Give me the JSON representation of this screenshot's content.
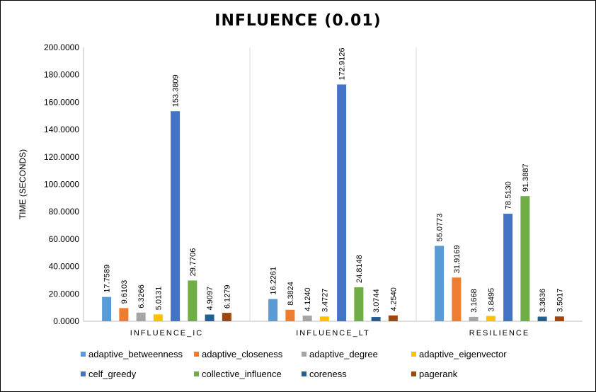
{
  "chart_data": {
    "type": "bar",
    "title": "INFLUENCE (0.01)",
    "ylabel": "TIME (SECONDS)",
    "xlabel": "",
    "ylim": [
      0,
      200
    ],
    "yticks": [
      "0.0000",
      "20.0000",
      "40.0000",
      "60.0000",
      "80.0000",
      "100.0000",
      "120.0000",
      "140.0000",
      "160.0000",
      "180.0000",
      "200.0000"
    ],
    "categories": [
      "INFLUENCE_IC",
      "INFLUENCE_LT",
      "RESILIENCE"
    ],
    "series": [
      {
        "name": "adaptive_betweenness",
        "color": "#5B9BD5",
        "values": [
          17.7589,
          16.2261,
          55.0773
        ],
        "labels": [
          "17.7589",
          "16.2261",
          "55.0773"
        ]
      },
      {
        "name": "adaptive_closeness",
        "color": "#ED7D31",
        "values": [
          9.6103,
          8.3824,
          31.9169
        ],
        "labels": [
          "9.6103",
          "8.3824",
          "31.9169"
        ]
      },
      {
        "name": "adaptive_degree",
        "color": "#A5A5A5",
        "values": [
          6.3266,
          4.124,
          3.1668
        ],
        "labels": [
          "6.3266",
          "4.1240",
          "3.1668"
        ]
      },
      {
        "name": "adaptive_eigenvector",
        "color": "#FFC000",
        "values": [
          5.0131,
          3.4727,
          3.8495
        ],
        "labels": [
          "5.0131",
          "3.4727",
          "3.8495"
        ]
      },
      {
        "name": "celf_greedy",
        "color": "#4472C4",
        "values": [
          153.3809,
          172.9126,
          78.513
        ],
        "labels": [
          "153.3809",
          "172.9126",
          "78.5130"
        ]
      },
      {
        "name": "collective_influence",
        "color": "#70AD47",
        "values": [
          29.7706,
          24.8148,
          91.3887
        ],
        "labels": [
          "29.7706",
          "24.8148",
          "91.3887"
        ]
      },
      {
        "name": "coreness",
        "color": "#255E91",
        "values": [
          4.9097,
          3.0744,
          3.3636
        ],
        "labels": [
          "4.9097",
          "3.0744",
          "3.3636"
        ]
      },
      {
        "name": "pagerank",
        "color": "#9E480E",
        "values": [
          6.1279,
          4.254,
          3.5017
        ],
        "labels": [
          "6.1279",
          "4.2540",
          "3.5017"
        ]
      }
    ],
    "grid": "vertical separators between categories",
    "legend_position": "bottom"
  }
}
